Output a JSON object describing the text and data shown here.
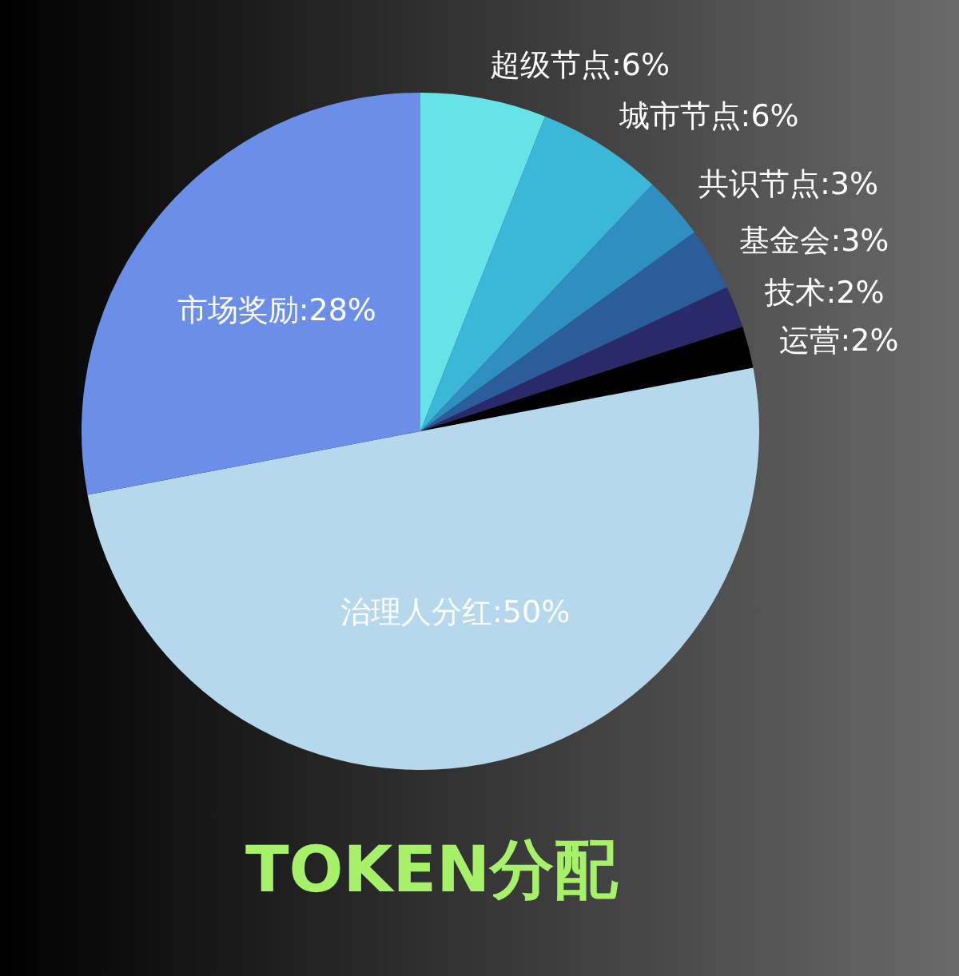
{
  "chart_data": {
    "type": "pie",
    "title": "TOKEN分配",
    "categories": [
      "超级节点",
      "城市节点",
      "共识节点",
      "基金会",
      "技术",
      "运营",
      "治理人分红",
      "市场奖励"
    ],
    "values": [
      6,
      6,
      3,
      3,
      2,
      2,
      50,
      28
    ],
    "value_labels": [
      ":6%",
      ":6%",
      ":3%",
      ":3%",
      ":2%",
      ":2%",
      ":50%",
      ":28%"
    ],
    "colors": [
      "#66e3e6",
      "#3bb8d8",
      "#2e8fc0",
      "#2a5d9a",
      "#2a2a6a",
      "#000000",
      "#b6d8ec",
      "#6b8fe8"
    ]
  }
}
